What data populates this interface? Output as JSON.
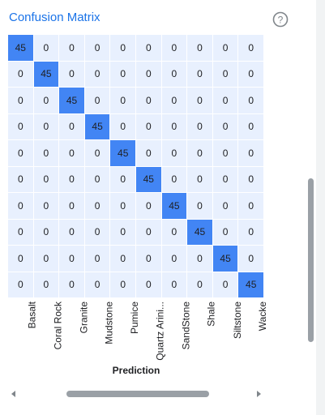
{
  "title": "Confusion Matrix",
  "help_icon": "help-circle-icon",
  "colors": {
    "title": "#1a73e8",
    "cell_background": "#e8f0fe",
    "diagonal_cell": "#4285f4"
  },
  "chart_data": {
    "type": "heatmap",
    "title": "Confusion Matrix",
    "xlabel": "Prediction",
    "ylabel": "",
    "x_categories": [
      "Basalt",
      "Coral Rock",
      "Granite",
      "Mudstone",
      "Pumice",
      "Quartz Arini...",
      "SandStone",
      "Shale",
      "Siltstone",
      "Wacke"
    ],
    "values": [
      [
        45,
        0,
        0,
        0,
        0,
        0,
        0,
        0,
        0,
        0
      ],
      [
        0,
        45,
        0,
        0,
        0,
        0,
        0,
        0,
        0,
        0
      ],
      [
        0,
        0,
        45,
        0,
        0,
        0,
        0,
        0,
        0,
        0
      ],
      [
        0,
        0,
        0,
        45,
        0,
        0,
        0,
        0,
        0,
        0
      ],
      [
        0,
        0,
        0,
        0,
        45,
        0,
        0,
        0,
        0,
        0
      ],
      [
        0,
        0,
        0,
        0,
        0,
        45,
        0,
        0,
        0,
        0
      ],
      [
        0,
        0,
        0,
        0,
        0,
        0,
        45,
        0,
        0,
        0
      ],
      [
        0,
        0,
        0,
        0,
        0,
        0,
        0,
        45,
        0,
        0
      ],
      [
        0,
        0,
        0,
        0,
        0,
        0,
        0,
        0,
        45,
        0
      ],
      [
        0,
        0,
        0,
        0,
        0,
        0,
        0,
        0,
        0,
        45
      ]
    ]
  }
}
